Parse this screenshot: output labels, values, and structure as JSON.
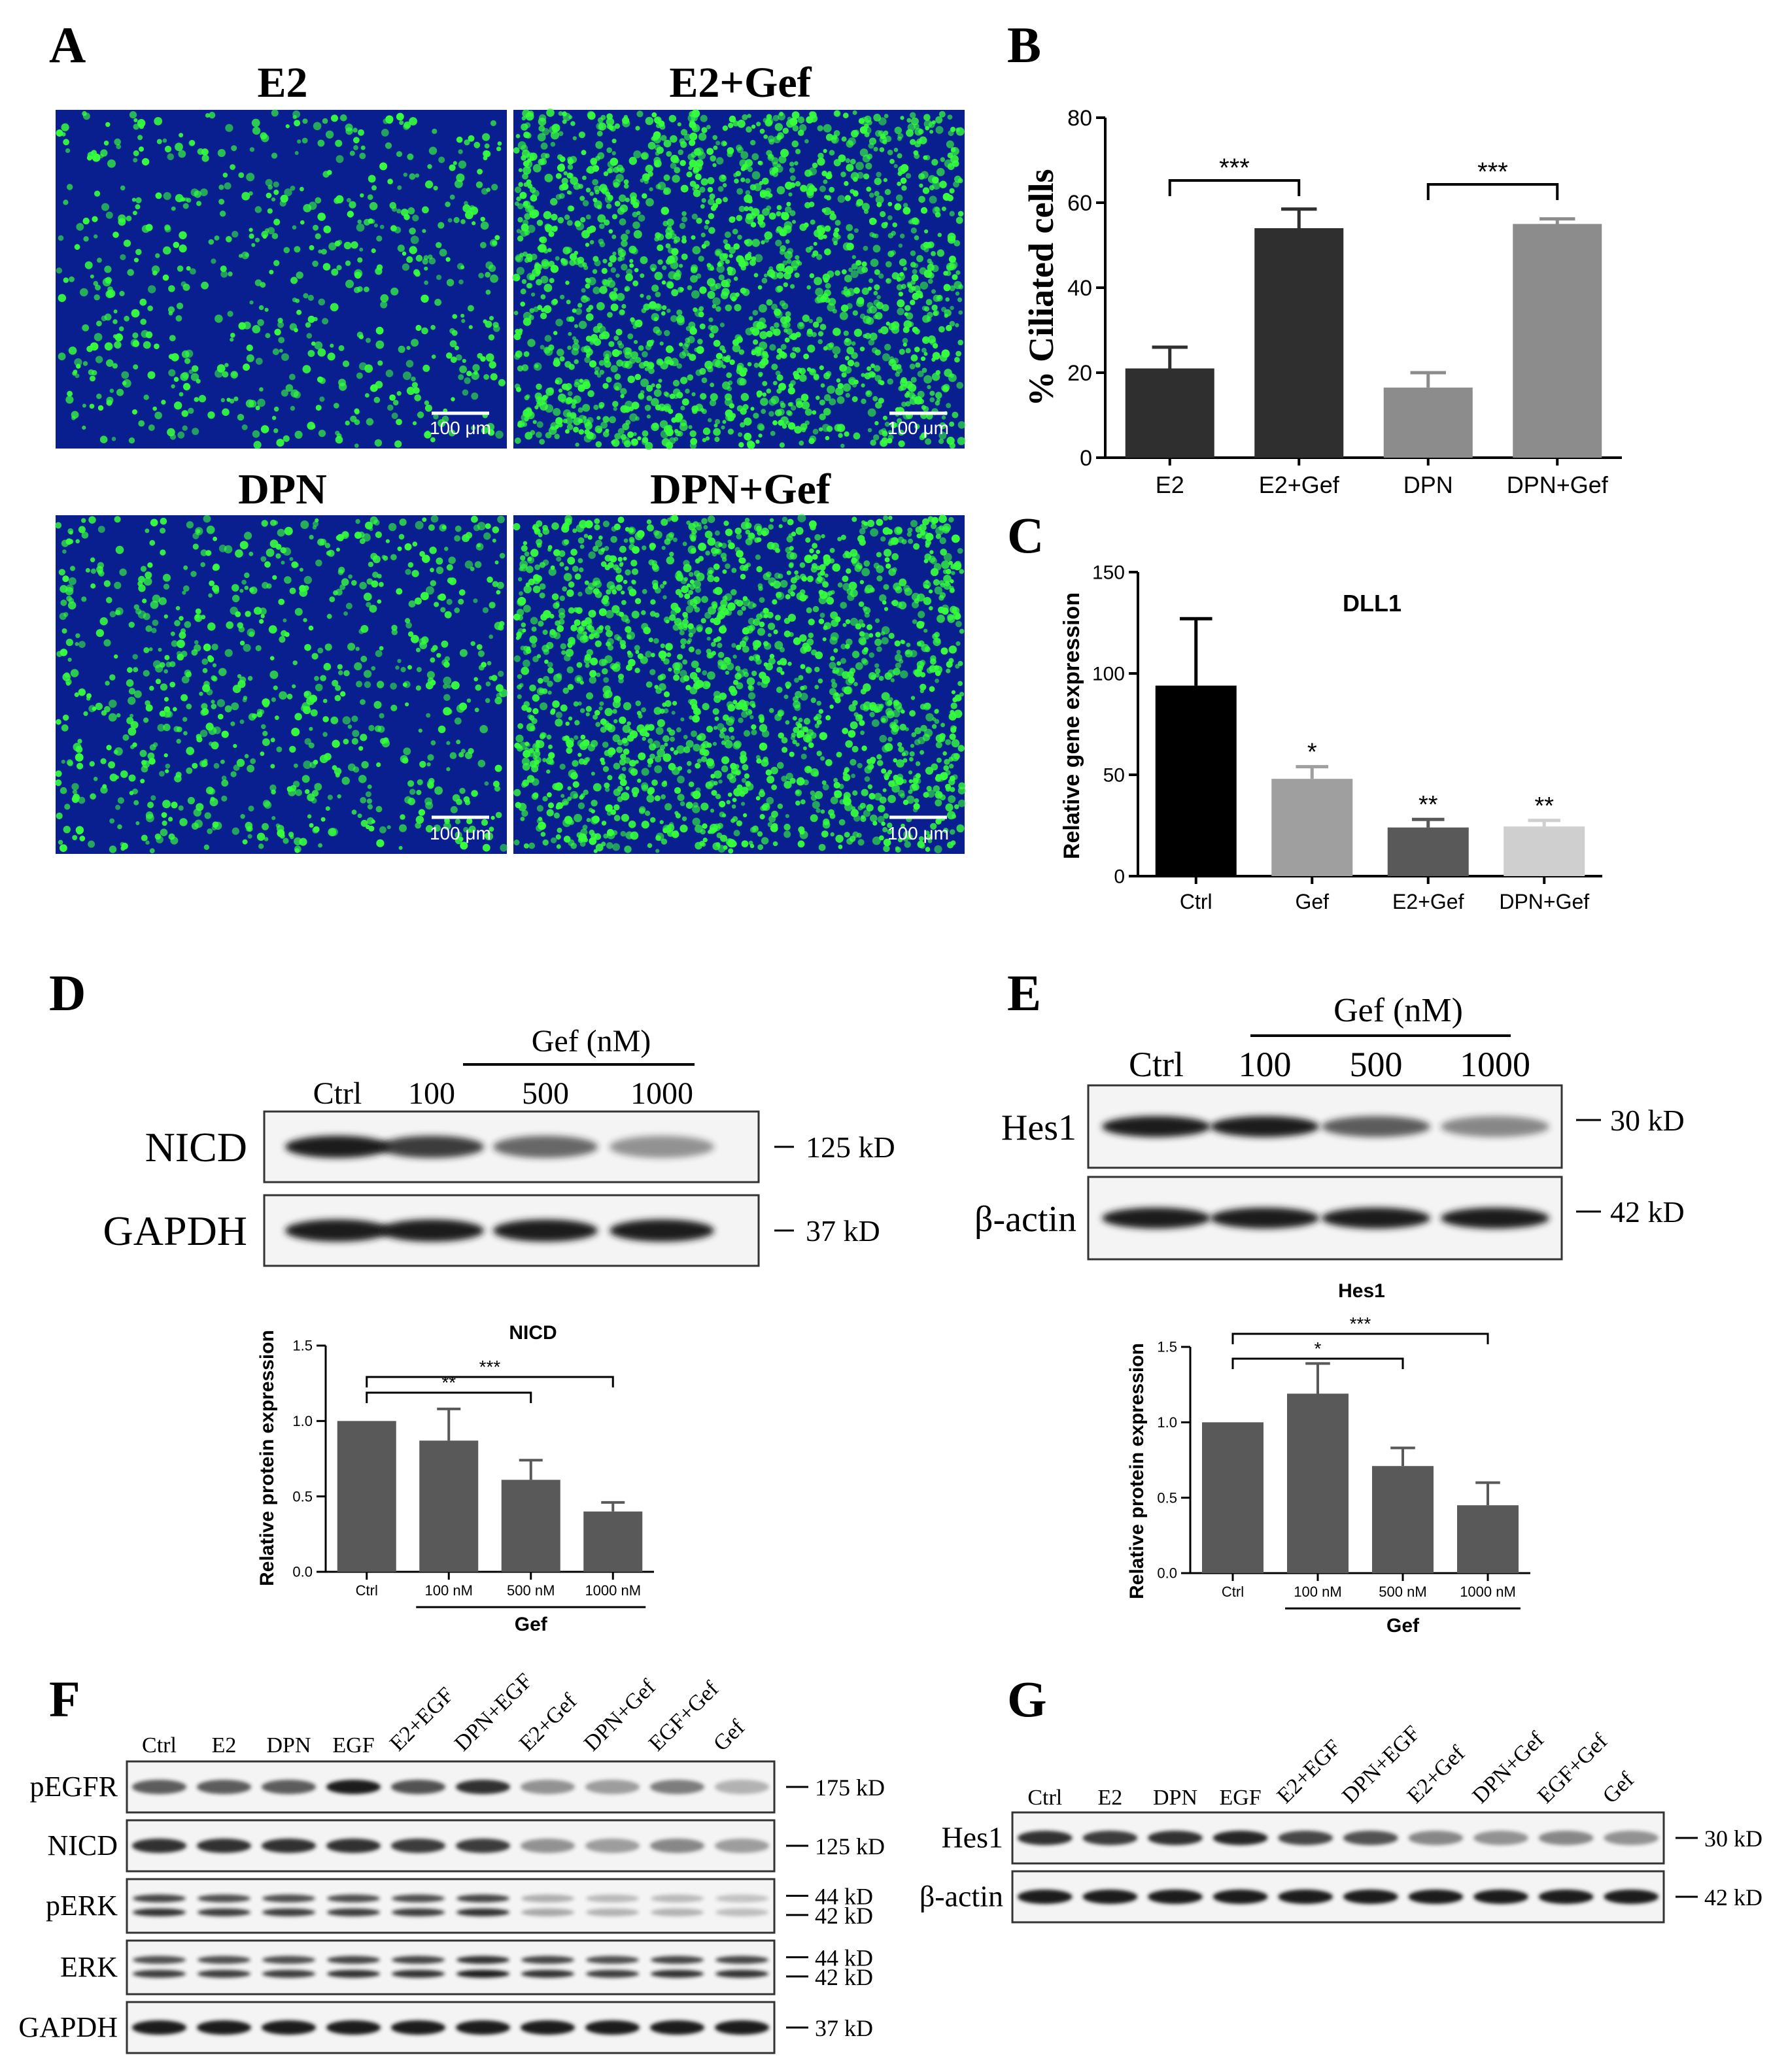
{
  "colors": {
    "micro_bg": "#0a1f8f",
    "micro_dot": "#36ff3c",
    "bar_dark": "#2f2f2f",
    "bar_mid": "#595959",
    "bar_light": "#8c8c8c",
    "bar_black": "#000000",
    "bar_gray": "#9f9f9f",
    "bar_lightgray": "#cfcfcf",
    "blot_bg": "#f4f4f4",
    "band": "#1a1a1a"
  },
  "panel_a": {
    "letter": "A",
    "scale_bar": "100 μm",
    "images": [
      {
        "title": "E2",
        "density": 0.35
      },
      {
        "title": "E2+Gef",
        "density": 1.0
      },
      {
        "title": "DPN",
        "density": 0.45
      },
      {
        "title": "DPN+Gef",
        "density": 1.0
      }
    ]
  },
  "panel_b": {
    "letter": "B",
    "chart_data": {
      "type": "bar",
      "categories": [
        "E2",
        "E2+Gef",
        "DPN",
        "DPN+Gef"
      ],
      "values": [
        21,
        54,
        16.5,
        55
      ],
      "errors": [
        5,
        4.5,
        3.5,
        1.2
      ],
      "ylabel": "% Ciliated cells",
      "ylim": [
        0,
        80
      ],
      "yticks": [
        0,
        20,
        40,
        60,
        80
      ],
      "significance": [
        {
          "from": 0,
          "to": 1,
          "label": "***"
        },
        {
          "from": 2,
          "to": 3,
          "label": "***"
        }
      ]
    }
  },
  "panel_c": {
    "letter": "C",
    "chart_data": {
      "type": "bar",
      "title": "DLL1",
      "categories": [
        "Ctrl",
        "Gef",
        "E2+Gef",
        "DPN+Gef"
      ],
      "values": [
        94,
        48,
        24,
        24.5
      ],
      "errors": [
        33,
        6,
        4,
        3
      ],
      "stars": [
        "",
        "*",
        "**",
        "**"
      ],
      "ylabel": "Relative gene expression",
      "ylim": [
        0,
        150
      ],
      "yticks": [
        0,
        50,
        100,
        150
      ]
    }
  },
  "panel_d": {
    "letter": "D",
    "blot": {
      "group_label": "Gef (nM)",
      "lanes": [
        "Ctrl",
        "100",
        "500",
        "1000"
      ],
      "rows": [
        {
          "label": "NICD",
          "kd": "125 kD",
          "intensity": [
            1.0,
            0.85,
            0.65,
            0.45
          ]
        },
        {
          "label": "GAPDH",
          "kd": "37 kD",
          "intensity": [
            1.0,
            1.0,
            1.0,
            1.0
          ]
        }
      ]
    },
    "chart_data": {
      "type": "bar",
      "title": "NICD",
      "categories": [
        "Ctrl",
        "100 nM",
        "500 nM",
        "1000 nM"
      ],
      "values": [
        1.0,
        0.87,
        0.61,
        0.4
      ],
      "errors": [
        0,
        0.21,
        0.13,
        0.06
      ],
      "ylabel": "Relative protein expression",
      "group_label": "Gef",
      "ylim": [
        0,
        1.5
      ],
      "yticks": [
        "0.0",
        "0.5",
        "1.0",
        "1.5"
      ],
      "significance": [
        {
          "from": 0,
          "to": 2,
          "label": "**"
        },
        {
          "from": 0,
          "to": 3,
          "label": "***"
        }
      ]
    }
  },
  "panel_e": {
    "letter": "E",
    "blot": {
      "group_label": "Gef (nM)",
      "lanes": [
        "Ctrl",
        "100",
        "500",
        "1000"
      ],
      "rows": [
        {
          "label": "Hes1",
          "kd": "30 kD",
          "intensity": [
            1.0,
            1.0,
            0.7,
            0.5
          ]
        },
        {
          "label": "β-actin",
          "kd": "42 kD",
          "intensity": [
            1.0,
            1.0,
            1.0,
            1.0
          ]
        }
      ]
    },
    "chart_data": {
      "type": "bar",
      "title": "Hes1",
      "categories": [
        "Ctrl",
        "100 nM",
        "500 nM",
        "1000 nM"
      ],
      "values": [
        1.0,
        1.19,
        0.71,
        0.45
      ],
      "errors": [
        0,
        0.2,
        0.12,
        0.15
      ],
      "ylabel": "Relative protein expression",
      "group_label": "Gef",
      "ylim": [
        0,
        1.5
      ],
      "yticks": [
        "0.0",
        "0.5",
        "1.0",
        "1.5"
      ],
      "significance": [
        {
          "from": 0,
          "to": 2,
          "label": "*"
        },
        {
          "from": 0,
          "to": 3,
          "label": "***"
        }
      ]
    }
  },
  "panel_f": {
    "letter": "F",
    "lanes": [
      "Ctrl",
      "E2",
      "DPN",
      "EGF",
      "E2+EGF",
      "DPN+EGF",
      "E2+Gef",
      "DPN+Gef",
      "EGF+Gef",
      "Gef"
    ],
    "rows": [
      {
        "label": "pEGFR",
        "kd": [
          "175 kD"
        ],
        "double": false,
        "intensity": [
          0.7,
          0.7,
          0.7,
          1.0,
          0.75,
          0.9,
          0.45,
          0.4,
          0.55,
          0.3
        ]
      },
      {
        "label": "NICD",
        "kd": [
          "125 kD"
        ],
        "double": false,
        "intensity": [
          0.9,
          0.9,
          0.9,
          0.9,
          0.85,
          0.85,
          0.45,
          0.4,
          0.5,
          0.4
        ]
      },
      {
        "label": "pERK",
        "kd": [
          "44 kD",
          "42 kD"
        ],
        "double": true,
        "intensity": [
          0.9,
          0.85,
          0.85,
          0.85,
          0.85,
          0.9,
          0.35,
          0.3,
          0.3,
          0.25
        ]
      },
      {
        "label": "ERK",
        "kd": [
          "44 kD",
          "42 kD"
        ],
        "double": true,
        "intensity": [
          0.85,
          0.85,
          0.85,
          0.9,
          0.9,
          1.0,
          0.9,
          0.85,
          0.9,
          0.9
        ]
      },
      {
        "label": "GAPDH",
        "kd": [
          "37 kD"
        ],
        "double": false,
        "intensity": [
          1,
          1,
          1,
          1,
          1,
          1,
          1,
          1,
          1,
          1
        ]
      }
    ]
  },
  "panel_g": {
    "letter": "G",
    "lanes": [
      "Ctrl",
      "E2",
      "DPN",
      "EGF",
      "E2+EGF",
      "DPN+EGF",
      "E2+Gef",
      "DPN+Gef",
      "EGF+Gef",
      "Gef"
    ],
    "rows": [
      {
        "label": "Hes1",
        "kd": [
          "30 kD"
        ],
        "double": false,
        "intensity": [
          0.9,
          0.85,
          0.9,
          0.95,
          0.8,
          0.75,
          0.5,
          0.45,
          0.5,
          0.45
        ]
      },
      {
        "label": "β-actin",
        "kd": [
          "42 kD"
        ],
        "double": false,
        "intensity": [
          1,
          1,
          1,
          1,
          1,
          1,
          1,
          1,
          1,
          1
        ]
      }
    ]
  }
}
